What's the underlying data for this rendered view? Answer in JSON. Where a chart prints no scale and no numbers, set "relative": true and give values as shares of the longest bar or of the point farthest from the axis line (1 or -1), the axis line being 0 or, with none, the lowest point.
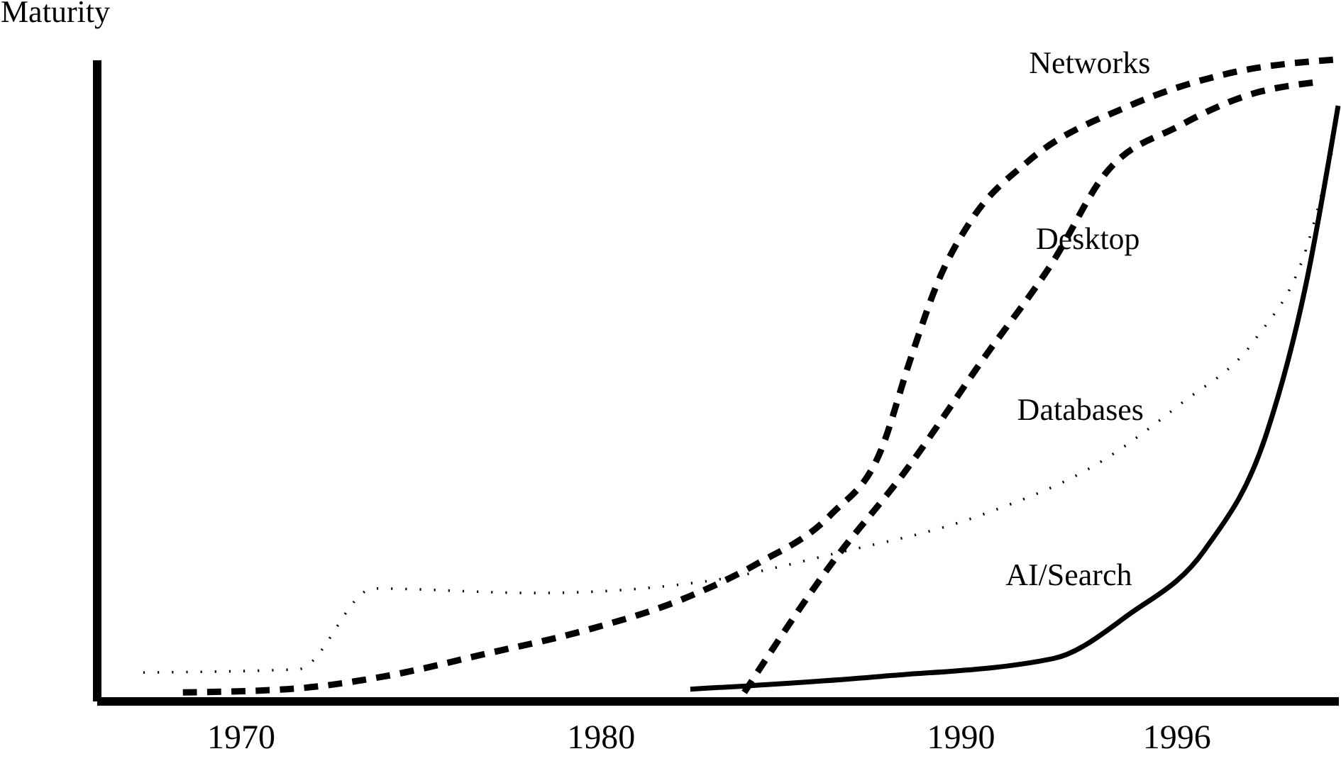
{
  "chart_data": {
    "type": "line",
    "relative": true,
    "ylabel": "Maturity",
    "xlim": [
      1966,
      2000.5
    ],
    "xticks": [
      1970,
      1980,
      1990,
      1996
    ],
    "grid": false,
    "marker": "none",
    "series": [
      {
        "name": "Networks",
        "color": "#000000",
        "line_style": "dashed",
        "x": [
          1968.4,
          1971.3,
          1974.0,
          1976.8,
          1979.6,
          1982.4,
          1984.3,
          1986.4,
          1987.8,
          1988.6,
          1989.4,
          1990.3,
          1991.9,
          1994.7,
          1997.5,
          2000.4
        ],
        "values": [
          0.013,
          0.018,
          0.038,
          0.073,
          0.11,
          0.161,
          0.212,
          0.29,
          0.391,
          0.53,
          0.656,
          0.749,
          0.842,
          0.928,
          0.979,
          1.0
        ]
      },
      {
        "name": "Desktop",
        "color": "#000000",
        "line_style": "dashed",
        "x": [
          1984.0,
          1986.4,
          1988.5,
          1990.6,
          1992.6,
          1994.0,
          1996.1,
          1998.2,
          1999.8
        ],
        "values": [
          0.013,
          0.212,
          0.36,
          0.53,
          0.687,
          0.82,
          0.897,
          0.948,
          0.964
        ]
      },
      {
        "name": "Databases",
        "color": "#000000",
        "line_style": "dotted",
        "x": [
          1967.3,
          1971.6,
          1973.7,
          1978.2,
          1982.9,
          1986.4,
          1990.6,
          1994.0,
          1996.1,
          1998.2,
          1999.6,
          2000.4
        ],
        "values": [
          0.044,
          0.049,
          0.175,
          0.168,
          0.186,
          0.228,
          0.29,
          0.376,
          0.462,
          0.564,
          0.703,
          0.873
        ]
      },
      {
        "name": "AI/Search",
        "color": "#000000",
        "line_style": "solid",
        "x": [
          1982.5,
          1987.8,
          1992.6,
          1994.7,
          1996.8,
          1998.5,
          1999.6,
          2000.5
        ],
        "values": [
          0.018,
          0.038,
          0.066,
          0.135,
          0.236,
          0.415,
          0.648,
          0.928
        ]
      }
    ]
  }
}
